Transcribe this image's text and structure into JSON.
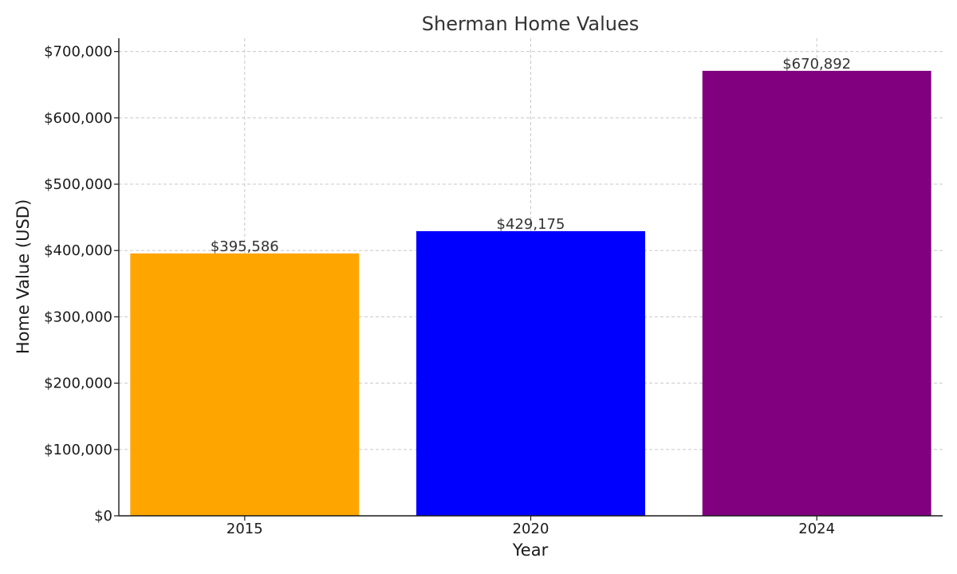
{
  "chart_data": {
    "type": "bar",
    "title": "Sherman Home Values",
    "xlabel": "Year",
    "ylabel": "Home Value (USD)",
    "categories": [
      "2015",
      "2020",
      "2024"
    ],
    "values": [
      395586,
      429175,
      670892
    ],
    "data_labels": [
      "$395,586",
      "$429,175",
      "$670,892"
    ],
    "colors": [
      "#FFA500",
      "#0000FF",
      "#800080"
    ],
    "ylim": [
      0,
      720000
    ],
    "yticks": [
      0,
      100000,
      200000,
      300000,
      400000,
      500000,
      600000,
      700000
    ],
    "ytick_labels": [
      "$0",
      "$100,000",
      "$200,000",
      "$300,000",
      "$400,000",
      "$500,000",
      "$600,000",
      "$700,000"
    ],
    "grid": true,
    "legend": "none"
  }
}
